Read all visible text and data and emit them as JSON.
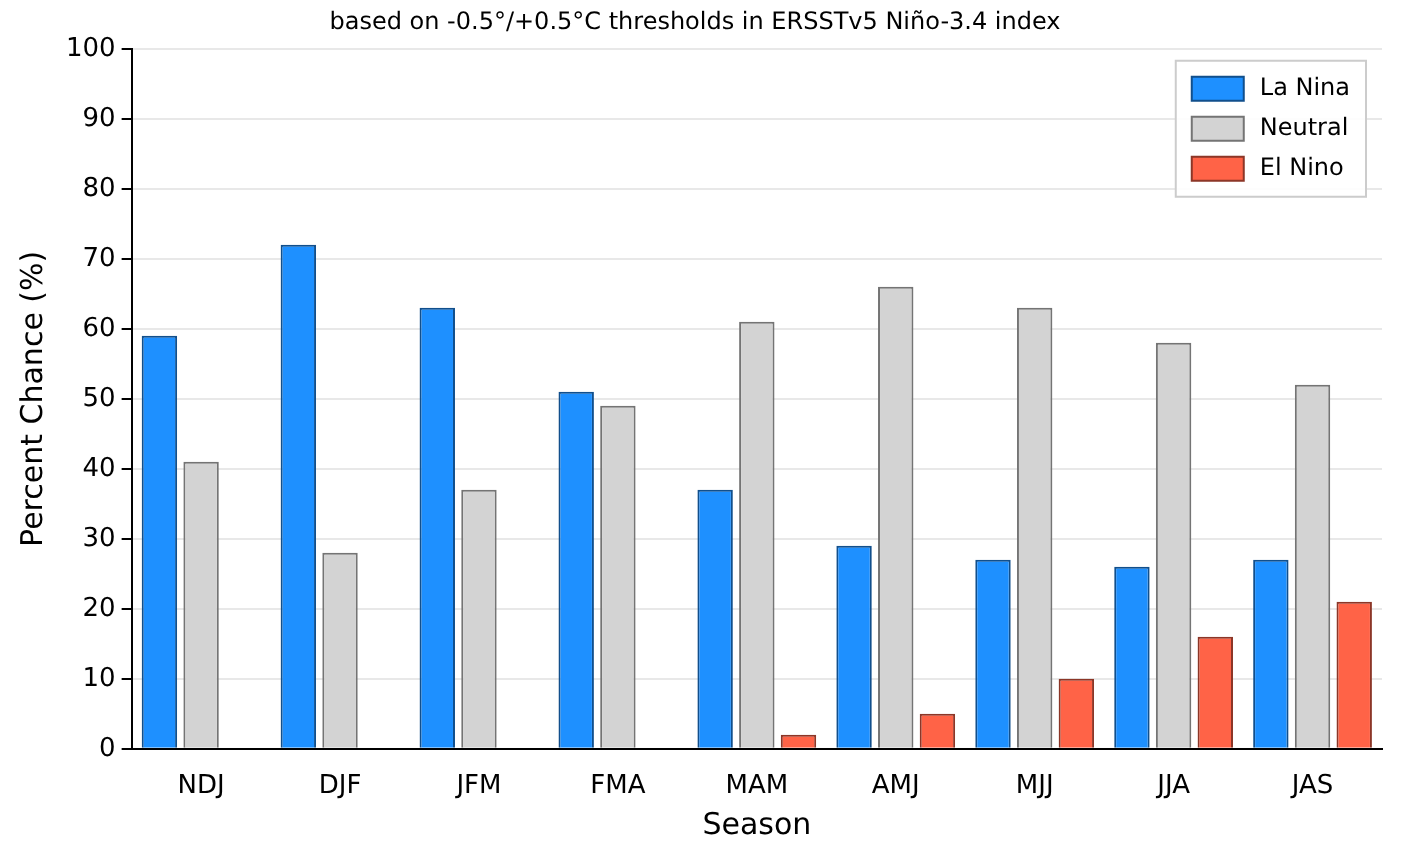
{
  "chart_data": {
    "type": "bar",
    "title": "based on -0.5°/+0.5°C thresholds in ERSSTv5 Niño-3.4 index",
    "xlabel": "Season",
    "ylabel": "Percent Chance (%)",
    "categories": [
      "NDJ",
      "DJF",
      "JFM",
      "FMA",
      "MAM",
      "AMJ",
      "MJJ",
      "JJA",
      "JAS"
    ],
    "series": [
      {
        "name": "La Nina",
        "color": "#1e90ff",
        "values": [
          59,
          72,
          63,
          51,
          37,
          29,
          27,
          26,
          27
        ]
      },
      {
        "name": "Neutral",
        "color": "#d3d3d3",
        "values": [
          41,
          28,
          37,
          49,
          61,
          66,
          63,
          58,
          52
        ]
      },
      {
        "name": "El Nino",
        "color": "#ff6347",
        "values": [
          0,
          0,
          0,
          0,
          2,
          5,
          10,
          16,
          21
        ]
      }
    ],
    "ylim": [
      0,
      100
    ],
    "yticks": [
      0,
      10,
      20,
      30,
      40,
      50,
      60,
      70,
      80,
      90,
      100
    ],
    "grid": "y",
    "legend": "top right"
  }
}
